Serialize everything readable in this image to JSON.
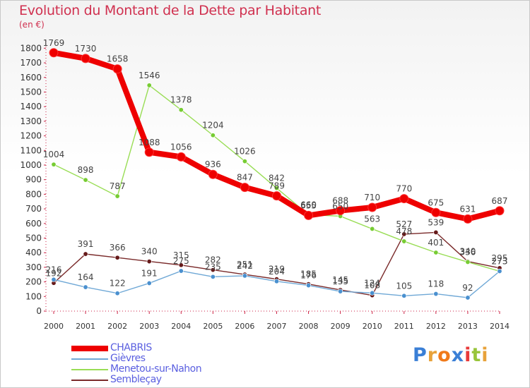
{
  "chart_data": {
    "type": "line",
    "title": "Evolution du Montant de la Dette par Habitant",
    "unit_label": "(en €)",
    "x": [
      "2000",
      "2001",
      "2002",
      "2003",
      "2004",
      "2005",
      "2006",
      "2007",
      "2008",
      "2009",
      "2010",
      "2011",
      "2012",
      "2013",
      "2014"
    ],
    "ylim": [
      0,
      1850
    ],
    "yticks": [
      0,
      100,
      200,
      300,
      400,
      500,
      600,
      700,
      800,
      900,
      1000,
      1100,
      1200,
      1300,
      1400,
      1500,
      1600,
      1700,
      1800
    ],
    "grid": false,
    "legend_position": "bottom-left",
    "series": [
      {
        "name": "CHABRIS",
        "color": "#ee0000",
        "marker_color": "#ee0000",
        "values": [
          1769,
          1730,
          1658,
          1088,
          1056,
          936,
          847,
          789,
          655,
          688,
          710,
          770,
          675,
          631,
          687
        ]
      },
      {
        "name": "Gièvres",
        "color": "#6fa8d6",
        "marker_color": "#4a90cf",
        "values": [
          216,
          164,
          122,
          191,
          275,
          235,
          242,
          204,
          176,
          135,
          124,
          105,
          118,
          92,
          273
        ]
      },
      {
        "name": "Menetou-sur-Nahon",
        "color": "#99dd55",
        "marker_color": "#77cc33",
        "values": [
          1004,
          898,
          787,
          1546,
          1378,
          1204,
          1026,
          842,
          660,
          650,
          563,
          478,
          401,
          336,
          273
        ]
      },
      {
        "name": "Sembleçay",
        "color": "#7a2a2a",
        "marker_color": "#661a1a",
        "values": [
          192,
          391,
          366,
          340,
          315,
          282,
          251,
          219,
          185,
          145,
          108,
          527,
          539,
          340,
          295
        ]
      }
    ]
  },
  "logo": {
    "letters": [
      "P",
      "r",
      "o",
      "x",
      "i",
      "t",
      "i"
    ],
    "colors": [
      "#3a7fd6",
      "#e8a23a",
      "#f07a1a",
      "#3a7fd6",
      "#e83a3a",
      "#98c53a",
      "#e8a23a"
    ]
  }
}
